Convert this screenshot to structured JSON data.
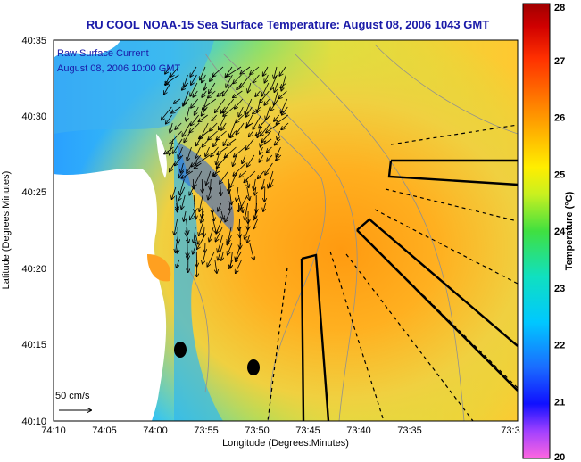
{
  "title": "RU COOL  NOAA-15  Sea Surface Temperature:  August 08, 2006 1043 GMT",
  "overlay": {
    "line1": "Raw Surface Current",
    "line2": "August 08, 2006 10:00 GMT",
    "scale_label": "50 cm/s"
  },
  "axes": {
    "x_label": "Longitude (Degrees:Minutes)",
    "y_label": "Latitude (Degrees:Minutes)",
    "x_ticks": [
      "74:10",
      "74:05",
      "74:00",
      "73:55",
      "73:50",
      "73:45",
      "73:40",
      "73:35",
      "73:3"
    ],
    "y_ticks": [
      "40:35",
      "40:30",
      "40:25",
      "40:20",
      "40:15",
      "40:10"
    ]
  },
  "colorbar": {
    "label": "Temperature (°C)",
    "ticks": [
      "28",
      "27",
      "26",
      "25",
      "24",
      "23",
      "22",
      "21",
      "20"
    ],
    "min": 20,
    "max": 28
  },
  "colors": {
    "land": "#ffffff",
    "title_text": "#1a1aa8",
    "cold": "#2b6cf0",
    "warm": "#f0a020"
  }
}
